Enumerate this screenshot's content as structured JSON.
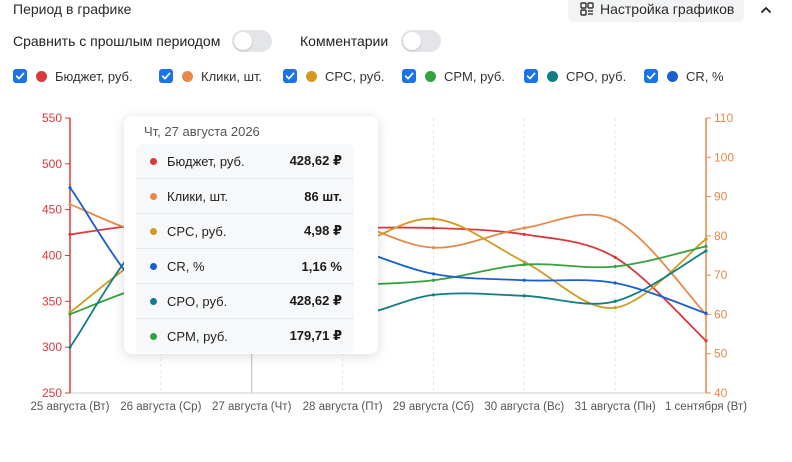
{
  "header": {
    "period_title": "Период в графике",
    "settings_label": "Настройка графиков"
  },
  "toggles": {
    "compare_label": "Сравнить с прошлым периодом",
    "compare_on": false,
    "comments_label": "Комментарии",
    "comments_on": false
  },
  "legend": [
    {
      "label": "Бюджет, руб.",
      "color": "#d9393c",
      "checked": true
    },
    {
      "label": "Клики, шт.",
      "color": "#e8894a",
      "checked": true
    },
    {
      "label": "CPC, руб.",
      "color": "#d49a1f",
      "checked": true
    },
    {
      "label": "CPM, руб.",
      "color": "#35a23f",
      "checked": true
    },
    {
      "label": "CPO, руб.",
      "color": "#127d85",
      "checked": true
    },
    {
      "label": "CR, %",
      "color": "#1b5fcf",
      "checked": true
    }
  ],
  "tooltip": {
    "date": "Чт, 27 августа 2026",
    "rows": [
      {
        "name": "Бюджет, руб.",
        "value": "428,62 ₽",
        "color": "#d9393c"
      },
      {
        "name": "Клики, шт.",
        "value": "86 шт.",
        "color": "#e8894a"
      },
      {
        "name": "CPC, руб.",
        "value": "4,98 ₽",
        "color": "#d49a1f"
      },
      {
        "name": "CR, %",
        "value": "1,16 %",
        "color": "#1b5fcf"
      },
      {
        "name": "CPO, руб.",
        "value": "428,62 ₽",
        "color": "#127d85"
      },
      {
        "name": "CPM, руб.",
        "value": "179,71 ₽",
        "color": "#35a23f"
      }
    ]
  },
  "chart_data": {
    "type": "line",
    "categories": [
      "25 августа (Вт)",
      "26 августа (Ср)",
      "27 августа (Чт)",
      "28 августа (Пт)",
      "29 августа (Сб)",
      "30 августа (Вс)",
      "31 августа (Пн)",
      "1 сентября (Вт)"
    ],
    "left_axis": {
      "min": 250,
      "max": 550,
      "ticks": [
        250,
        300,
        350,
        400,
        450,
        500,
        550
      ],
      "color": "#d9393c"
    },
    "right_axis": {
      "min": 40,
      "max": 110,
      "ticks": [
        40,
        50,
        60,
        70,
        80,
        90,
        100,
        110
      ],
      "color": "#e8894a"
    },
    "highlight_index": 2,
    "series": [
      {
        "name": "Бюджет, руб.",
        "color": "#d9393c",
        "axis": "left",
        "values": [
          423,
          435,
          429,
          430,
          430,
          423,
          398,
          307
        ]
      },
      {
        "name": "Клики, шт.",
        "color": "#e8894a",
        "axis": "right",
        "values": [
          88,
          80,
          86,
          84,
          77,
          82,
          84,
          60
        ]
      },
      {
        "name": "CPC, руб.",
        "color": "#d49a1f",
        "axis": "left",
        "values": [
          338,
          408,
          413,
          408,
          440,
          393,
          343,
          418
        ]
      },
      {
        "name": "CPM, руб.",
        "color": "#35a23f",
        "axis": "left",
        "values": [
          336,
          370,
          368,
          368,
          373,
          390,
          388,
          410
        ]
      },
      {
        "name": "CPO, руб.",
        "color": "#127d85",
        "axis": "left",
        "values": [
          300,
          430,
          360,
          333,
          357,
          356,
          350,
          405
        ]
      },
      {
        "name": "CR, %",
        "color": "#1b5fcf",
        "axis": "left",
        "values": [
          474,
          348,
          420,
          410,
          380,
          373,
          370,
          337
        ]
      }
    ]
  }
}
